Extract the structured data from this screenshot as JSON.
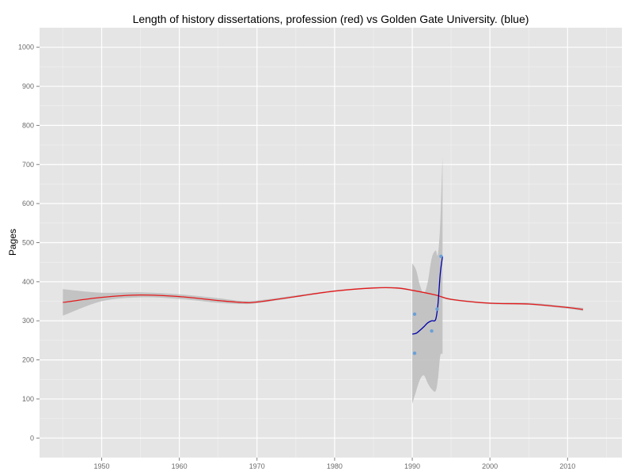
{
  "chart_data": {
    "type": "line",
    "title": "Length of history dissertations, profession (red) vs Golden Gate University. (blue)",
    "xlabel": "",
    "ylabel": "Pages",
    "xlim": [
      1942,
      2017
    ],
    "ylim": [
      -50,
      1050
    ],
    "x_ticks": [
      1950,
      1960,
      1970,
      1980,
      1990,
      2000,
      2010
    ],
    "y_ticks": [
      0,
      100,
      200,
      300,
      400,
      500,
      600,
      700,
      800,
      900,
      1000
    ],
    "grid": true,
    "legend": "none",
    "colors": {
      "panel": "#e5e5e5",
      "grid_major": "#ffffff",
      "grid_minor": "#f2f2f2",
      "ribbon": "#bdbdbd",
      "profession": "#e41a1c",
      "ggu": "#0000aa",
      "ggu_points": "#6aa0d8"
    },
    "series": [
      {
        "kind": "smooth",
        "color": "#e41a1c",
        "x": [
          1945,
          1950,
          1955,
          1960,
          1965,
          1968,
          1970,
          1975,
          1980,
          1985,
          1988,
          1990,
          1993,
          1995,
          2000,
          2005,
          2010,
          2012
        ],
        "y": [
          347,
          360,
          366,
          362,
          352,
          347,
          348,
          362,
          376,
          384,
          384,
          378,
          366,
          355,
          345,
          343,
          334,
          329
        ],
        "band_low": [
          313,
          350,
          360,
          356,
          346,
          343,
          345,
          360,
          375,
          383,
          382,
          376,
          364,
          353,
          343,
          341,
          331,
          325
        ],
        "band_high": [
          381,
          372,
          373,
          368,
          358,
          351,
          352,
          365,
          378,
          386,
          386,
          380,
          368,
          357,
          347,
          346,
          337,
          333
        ]
      },
      {
        "kind": "smooth",
        "color": "#0000aa",
        "x": [
          1990.0,
          1990.5,
          1991.0,
          1991.5,
          1992.0,
          1992.5,
          1993.0,
          1993.3,
          1993.6,
          1993.9
        ],
        "y": [
          266,
          268,
          276,
          285,
          295,
          300,
          303,
          340,
          420,
          465
        ],
        "band_low": [
          88,
          120,
          150,
          160,
          140,
          125,
          120,
          150,
          210,
          215
        ],
        "band_high": [
          447,
          430,
          390,
          370,
          400,
          460,
          480,
          470,
          550,
          720
        ]
      },
      {
        "kind": "points",
        "color": "#6aa0d8",
        "x": [
          1990.3,
          1990.3,
          1992.5,
          1993.2,
          1993.7
        ],
        "y": [
          217,
          317,
          274,
          330,
          465
        ]
      }
    ]
  }
}
